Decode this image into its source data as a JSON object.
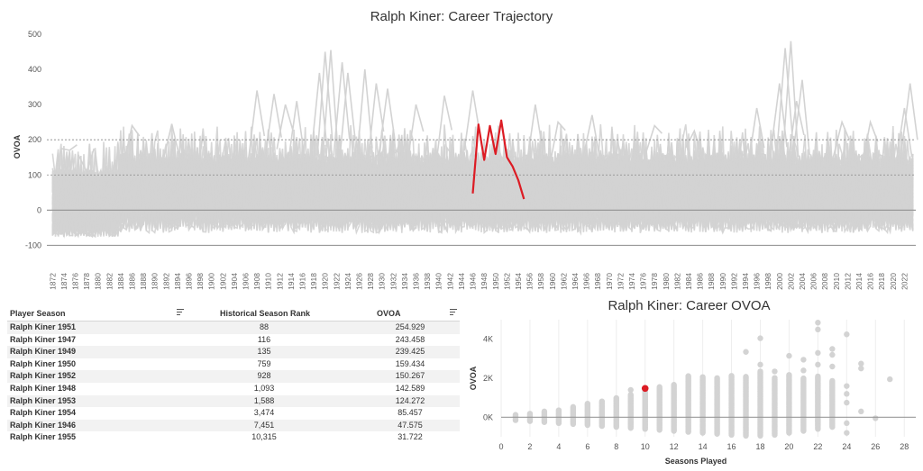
{
  "chart_data": [
    {
      "type": "line",
      "title": "Ralph Kiner: Career Trajectory",
      "ylabel": "OVOA",
      "xlabel": "",
      "ylim": [
        -150,
        510
      ],
      "xlim": [
        1871,
        2024
      ],
      "y_ticks": [
        -100,
        0,
        100,
        200,
        300,
        400,
        500
      ],
      "x_ticks": [
        1872,
        1874,
        1876,
        1878,
        1880,
        1882,
        1884,
        1886,
        1888,
        1890,
        1892,
        1894,
        1896,
        1898,
        1900,
        1902,
        1904,
        1906,
        1908,
        1910,
        1912,
        1914,
        1916,
        1918,
        1920,
        1922,
        1924,
        1926,
        1928,
        1930,
        1932,
        1934,
        1936,
        1938,
        1940,
        1942,
        1944,
        1946,
        1948,
        1950,
        1952,
        1954,
        1956,
        1958,
        1960,
        1962,
        1964,
        1966,
        1968,
        1970,
        1972,
        1974,
        1976,
        1978,
        1980,
        1982,
        1984,
        1986,
        1988,
        1990,
        1992,
        1994,
        1996,
        1998,
        2000,
        2002,
        2004,
        2006,
        2008,
        2010,
        2012,
        2014,
        2016,
        2018,
        2020,
        2022
      ],
      "reference_lines": [
        {
          "y": 200,
          "style": "dotted"
        },
        {
          "y": 100,
          "style": "dotted"
        },
        {
          "y": 0,
          "style": "solid"
        },
        {
          "y": -100,
          "style": "solid"
        }
      ],
      "background_series_color": "#d3d3d3",
      "series": [
        {
          "name": "Ralph Kiner",
          "color": "#dc1c24",
          "x": [
            1946,
            1947,
            1948,
            1949,
            1950,
            1951,
            1952,
            1953,
            1954,
            1955
          ],
          "y": [
            47.575,
            243.458,
            142.589,
            239.425,
            159.434,
            254.929,
            150.267,
            124.272,
            85.457,
            31.722
          ]
        }
      ],
      "background_peaks": [
        {
          "x": 1875,
          "y": 170
        },
        {
          "x": 1878,
          "y": 110
        },
        {
          "x": 1886,
          "y": 240
        },
        {
          "x": 1893,
          "y": 245
        },
        {
          "x": 1908,
          "y": 340
        },
        {
          "x": 1911,
          "y": 330
        },
        {
          "x": 1913,
          "y": 300
        },
        {
          "x": 1915,
          "y": 310
        },
        {
          "x": 1919,
          "y": 390
        },
        {
          "x": 1920,
          "y": 450
        },
        {
          "x": 1921,
          "y": 455
        },
        {
          "x": 1923,
          "y": 420
        },
        {
          "x": 1924,
          "y": 390
        },
        {
          "x": 1927,
          "y": 400
        },
        {
          "x": 1929,
          "y": 360
        },
        {
          "x": 1931,
          "y": 345
        },
        {
          "x": 1936,
          "y": 300
        },
        {
          "x": 1941,
          "y": 325
        },
        {
          "x": 1946,
          "y": 340
        },
        {
          "x": 1957,
          "y": 300
        },
        {
          "x": 1961,
          "y": 250
        },
        {
          "x": 1967,
          "y": 270
        },
        {
          "x": 1978,
          "y": 240
        },
        {
          "x": 1985,
          "y": 225
        },
        {
          "x": 1996,
          "y": 290
        },
        {
          "x": 2000,
          "y": 360
        },
        {
          "x": 2001,
          "y": 460
        },
        {
          "x": 2002,
          "y": 480
        },
        {
          "x": 2003,
          "y": 310
        },
        {
          "x": 2004,
          "y": 370
        },
        {
          "x": 2011,
          "y": 250
        },
        {
          "x": 2016,
          "y": 250
        },
        {
          "x": 2022,
          "y": 290
        },
        {
          "x": 2023,
          "y": 360
        }
      ]
    },
    {
      "type": "scatter",
      "title": "Ralph Kiner: Career OVOA",
      "xlabel": "Seasons Played",
      "ylabel": "OVOA",
      "xlim": [
        -0.5,
        28.8
      ],
      "ylim": [
        -1000,
        5000
      ],
      "x_ticks": [
        0,
        2,
        4,
        6,
        8,
        10,
        12,
        14,
        16,
        18,
        20,
        22,
        24,
        26,
        28
      ],
      "y_ticks": [
        0,
        2000,
        4000
      ],
      "y_tick_labels": [
        "0K",
        "2K",
        "4K"
      ],
      "background_color": "#d3d3d3",
      "highlight": {
        "x": 10,
        "y": 1480,
        "color": "#dc1c24"
      },
      "outlier_points": [
        [
          17,
          3350
        ],
        [
          18,
          4050
        ],
        [
          20,
          3150
        ],
        [
          21,
          2950
        ],
        [
          22,
          4850
        ],
        [
          22,
          4500
        ],
        [
          23,
          3500
        ],
        [
          24,
          4250
        ],
        [
          24,
          1600
        ],
        [
          24,
          1200
        ],
        [
          24,
          750
        ],
        [
          24,
          -300
        ],
        [
          24,
          -800
        ],
        [
          25,
          2750
        ],
        [
          25,
          2500
        ],
        [
          25,
          300
        ],
        [
          26,
          -50
        ],
        [
          27,
          1950
        ],
        [
          9,
          1400
        ],
        [
          18,
          2700
        ],
        [
          19,
          2350
        ],
        [
          21,
          2400
        ],
        [
          22,
          3300
        ],
        [
          22,
          2700
        ],
        [
          22,
          1250
        ],
        [
          22,
          -200
        ],
        [
          23,
          3200
        ],
        [
          23,
          2600
        ],
        [
          23,
          1150
        ]
      ],
      "columns": [
        {
          "x": 1,
          "min": -150,
          "max": 150
        },
        {
          "x": 2,
          "min": -200,
          "max": 200
        },
        {
          "x": 3,
          "min": -250,
          "max": 300
        },
        {
          "x": 4,
          "min": -300,
          "max": 400
        },
        {
          "x": 5,
          "min": -350,
          "max": 550
        },
        {
          "x": 6,
          "min": -400,
          "max": 700
        },
        {
          "x": 7,
          "min": -450,
          "max": 850
        },
        {
          "x": 8,
          "min": -500,
          "max": 1000
        },
        {
          "x": 9,
          "min": -550,
          "max": 1200
        },
        {
          "x": 10,
          "min": -600,
          "max": 1400
        },
        {
          "x": 11,
          "min": -650,
          "max": 1550
        },
        {
          "x": 12,
          "min": -700,
          "max": 1700
        },
        {
          "x": 13,
          "min": -750,
          "max": 2150
        },
        {
          "x": 14,
          "min": -800,
          "max": 2100
        },
        {
          "x": 15,
          "min": -850,
          "max": 2050
        },
        {
          "x": 16,
          "min": -900,
          "max": 2150
        },
        {
          "x": 17,
          "min": -950,
          "max": 2100
        },
        {
          "x": 18,
          "min": -950,
          "max": 2350
        },
        {
          "x": 19,
          "min": -900,
          "max": 2050
        },
        {
          "x": 20,
          "min": -800,
          "max": 2200
        },
        {
          "x": 21,
          "min": -700,
          "max": 2000
        },
        {
          "x": 22,
          "min": -600,
          "max": 2100
        },
        {
          "x": 23,
          "min": -500,
          "max": 1900
        }
      ]
    }
  ],
  "table": {
    "headers": {
      "player": "Player Season",
      "rank": "Historical Season Rank",
      "ovoa": "OVOA"
    },
    "rows": [
      {
        "player": "Ralph Kiner 1951",
        "rank": "88",
        "ovoa": "254.929"
      },
      {
        "player": "Ralph Kiner 1947",
        "rank": "116",
        "ovoa": "243.458"
      },
      {
        "player": "Ralph Kiner 1949",
        "rank": "135",
        "ovoa": "239.425"
      },
      {
        "player": "Ralph Kiner 1950",
        "rank": "759",
        "ovoa": "159.434"
      },
      {
        "player": "Ralph Kiner 1952",
        "rank": "928",
        "ovoa": "150.267"
      },
      {
        "player": "Ralph Kiner 1948",
        "rank": "1,093",
        "ovoa": "142.589"
      },
      {
        "player": "Ralph Kiner 1953",
        "rank": "1,588",
        "ovoa": "124.272"
      },
      {
        "player": "Ralph Kiner 1954",
        "rank": "3,474",
        "ovoa": "85.457"
      },
      {
        "player": "Ralph Kiner 1946",
        "rank": "7,451",
        "ovoa": "47.575"
      },
      {
        "player": "Ralph Kiner 1955",
        "rank": "10,315",
        "ovoa": "31.722"
      }
    ]
  }
}
